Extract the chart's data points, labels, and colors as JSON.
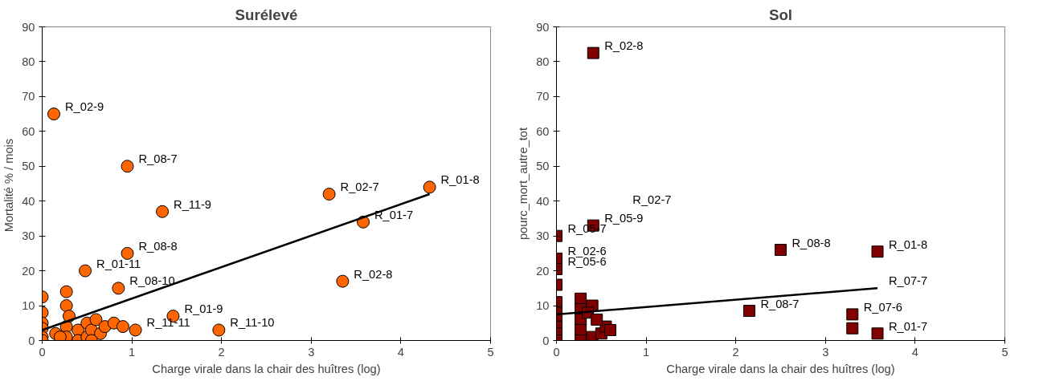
{
  "chart_data": [
    {
      "type": "scatter",
      "title": "Surélevé",
      "xlabel": "Charge virale dans la chair des huîtres (log)",
      "ylabel": "Mortalité  % / mois",
      "xlim": [
        0,
        5
      ],
      "ylim": [
        0,
        90
      ],
      "xticks": [
        0,
        1,
        2,
        3,
        4,
        5
      ],
      "yticks": [
        0,
        10,
        20,
        30,
        40,
        50,
        60,
        70,
        80,
        90
      ],
      "grid": false,
      "series": [
        {
          "marker": "circle",
          "color": "#ff6600",
          "x": [
            0.13,
            0.95,
            1.34,
            0.95,
            0.48,
            0.85,
            3.2,
            3.58,
            4.32,
            3.35,
            1.46,
            1.97,
            1.04,
            0,
            0,
            0,
            0,
            0,
            0,
            0.27,
            0.27,
            0.27,
            0.27,
            0.4,
            0.4,
            0.5,
            0.5,
            0.55,
            0.6,
            0.65,
            0.7,
            0.8,
            0.3,
            0.15,
            0.2,
            0.55,
            0.9
          ],
          "values": [
            65,
            50,
            37,
            25,
            20,
            15,
            42,
            34,
            44,
            17,
            7,
            3,
            3,
            12.5,
            8,
            5,
            3.5,
            1,
            0,
            14,
            10,
            4,
            1,
            3,
            0,
            5,
            1,
            3,
            6,
            2,
            4,
            5,
            7,
            2,
            1,
            0,
            4
          ]
        },
        {
          "type": "line",
          "color": "#000000",
          "x": [
            0,
            4.32
          ],
          "values": [
            3,
            42
          ]
        }
      ],
      "annotations": [
        {
          "text": "R_02-9",
          "x": 0.13,
          "y": 65
        },
        {
          "text": "R_08-7",
          "x": 0.95,
          "y": 50
        },
        {
          "text": "R_11-9",
          "x": 1.34,
          "y": 37
        },
        {
          "text": "R_08-8",
          "x": 0.95,
          "y": 25
        },
        {
          "text": "R_01-11",
          "x": 0.48,
          "y": 20
        },
        {
          "text": "R_08-10",
          "x": 0.85,
          "y": 15
        },
        {
          "text": "R_02-7",
          "x": 3.2,
          "y": 42
        },
        {
          "text": "R_01-7",
          "x": 3.58,
          "y": 34
        },
        {
          "text": "R_01-8",
          "x": 4.32,
          "y": 44
        },
        {
          "text": "R_02-8",
          "x": 3.35,
          "y": 17
        },
        {
          "text": "R_01-9",
          "x": 1.46,
          "y": 7
        },
        {
          "text": "R_11-10",
          "x": 1.97,
          "y": 3
        },
        {
          "text": "R_11-11",
          "x": 1.04,
          "y": 3
        }
      ]
    },
    {
      "type": "scatter",
      "title": "Sol",
      "xlabel": "Charge virale dans la chair des huîtres (log)",
      "ylabel": "pourc_mort_autre_tot",
      "xlim": [
        0,
        5
      ],
      "ylim": [
        0,
        90
      ],
      "xticks": [
        0,
        1,
        2,
        3,
        4,
        5
      ],
      "yticks": [
        0,
        10,
        20,
        30,
        40,
        50,
        60,
        70,
        80,
        90
      ],
      "grid": false,
      "series": [
        {
          "marker": "square",
          "color": "#800000",
          "x": [
            0.41,
            0.41,
            0,
            0,
            0,
            0,
            2.5,
            3.58,
            2.15,
            3.3,
            3.3,
            3.58,
            0,
            0,
            0,
            0,
            0,
            0,
            0.27,
            0.27,
            0.27,
            0.27,
            0.27,
            0.4,
            0.4,
            0.5,
            0.55,
            0.6,
            0.35,
            0.45
          ],
          "values": [
            82.5,
            33,
            30,
            23.5,
            20.5,
            16,
            26,
            25.5,
            8.5,
            7.5,
            3.5,
            2,
            11,
            8,
            6,
            4,
            2,
            0,
            12,
            9,
            6,
            3,
            0,
            10,
            1,
            2,
            4,
            3,
            8,
            6
          ]
        },
        {
          "type": "line",
          "color": "#000000",
          "x": [
            0,
            3.58
          ],
          "values": [
            7.5,
            15
          ]
        }
      ],
      "annotations": [
        {
          "text": "R_02-8",
          "x": 0.41,
          "y": 82.5
        },
        {
          "text": "R_05-9",
          "x": 0.41,
          "y": 33
        },
        "R_02-7",
        {
          "text": "R_05-7",
          "x": 0,
          "y": 30
        },
        {
          "text": "R_02-6",
          "x": 0,
          "y": 23.5
        },
        {
          "text": "R_05-6",
          "x": 0,
          "y": 20.5
        },
        {
          "text": "R_08-8",
          "x": 2.5,
          "y": 26
        },
        {
          "text": "R_01-8",
          "x": 3.58,
          "y": 25.5
        },
        {
          "text": "R_07-7",
          "x": 3.58,
          "y": 15
        },
        {
          "text": "R_08-7",
          "x": 2.15,
          "y": 8.5
        },
        {
          "text": "R_07-6",
          "x": 3.3,
          "y": 7.5
        },
        {
          "text": "R_01-7",
          "x": 3.58,
          "y": 2
        }
      ]
    }
  ]
}
